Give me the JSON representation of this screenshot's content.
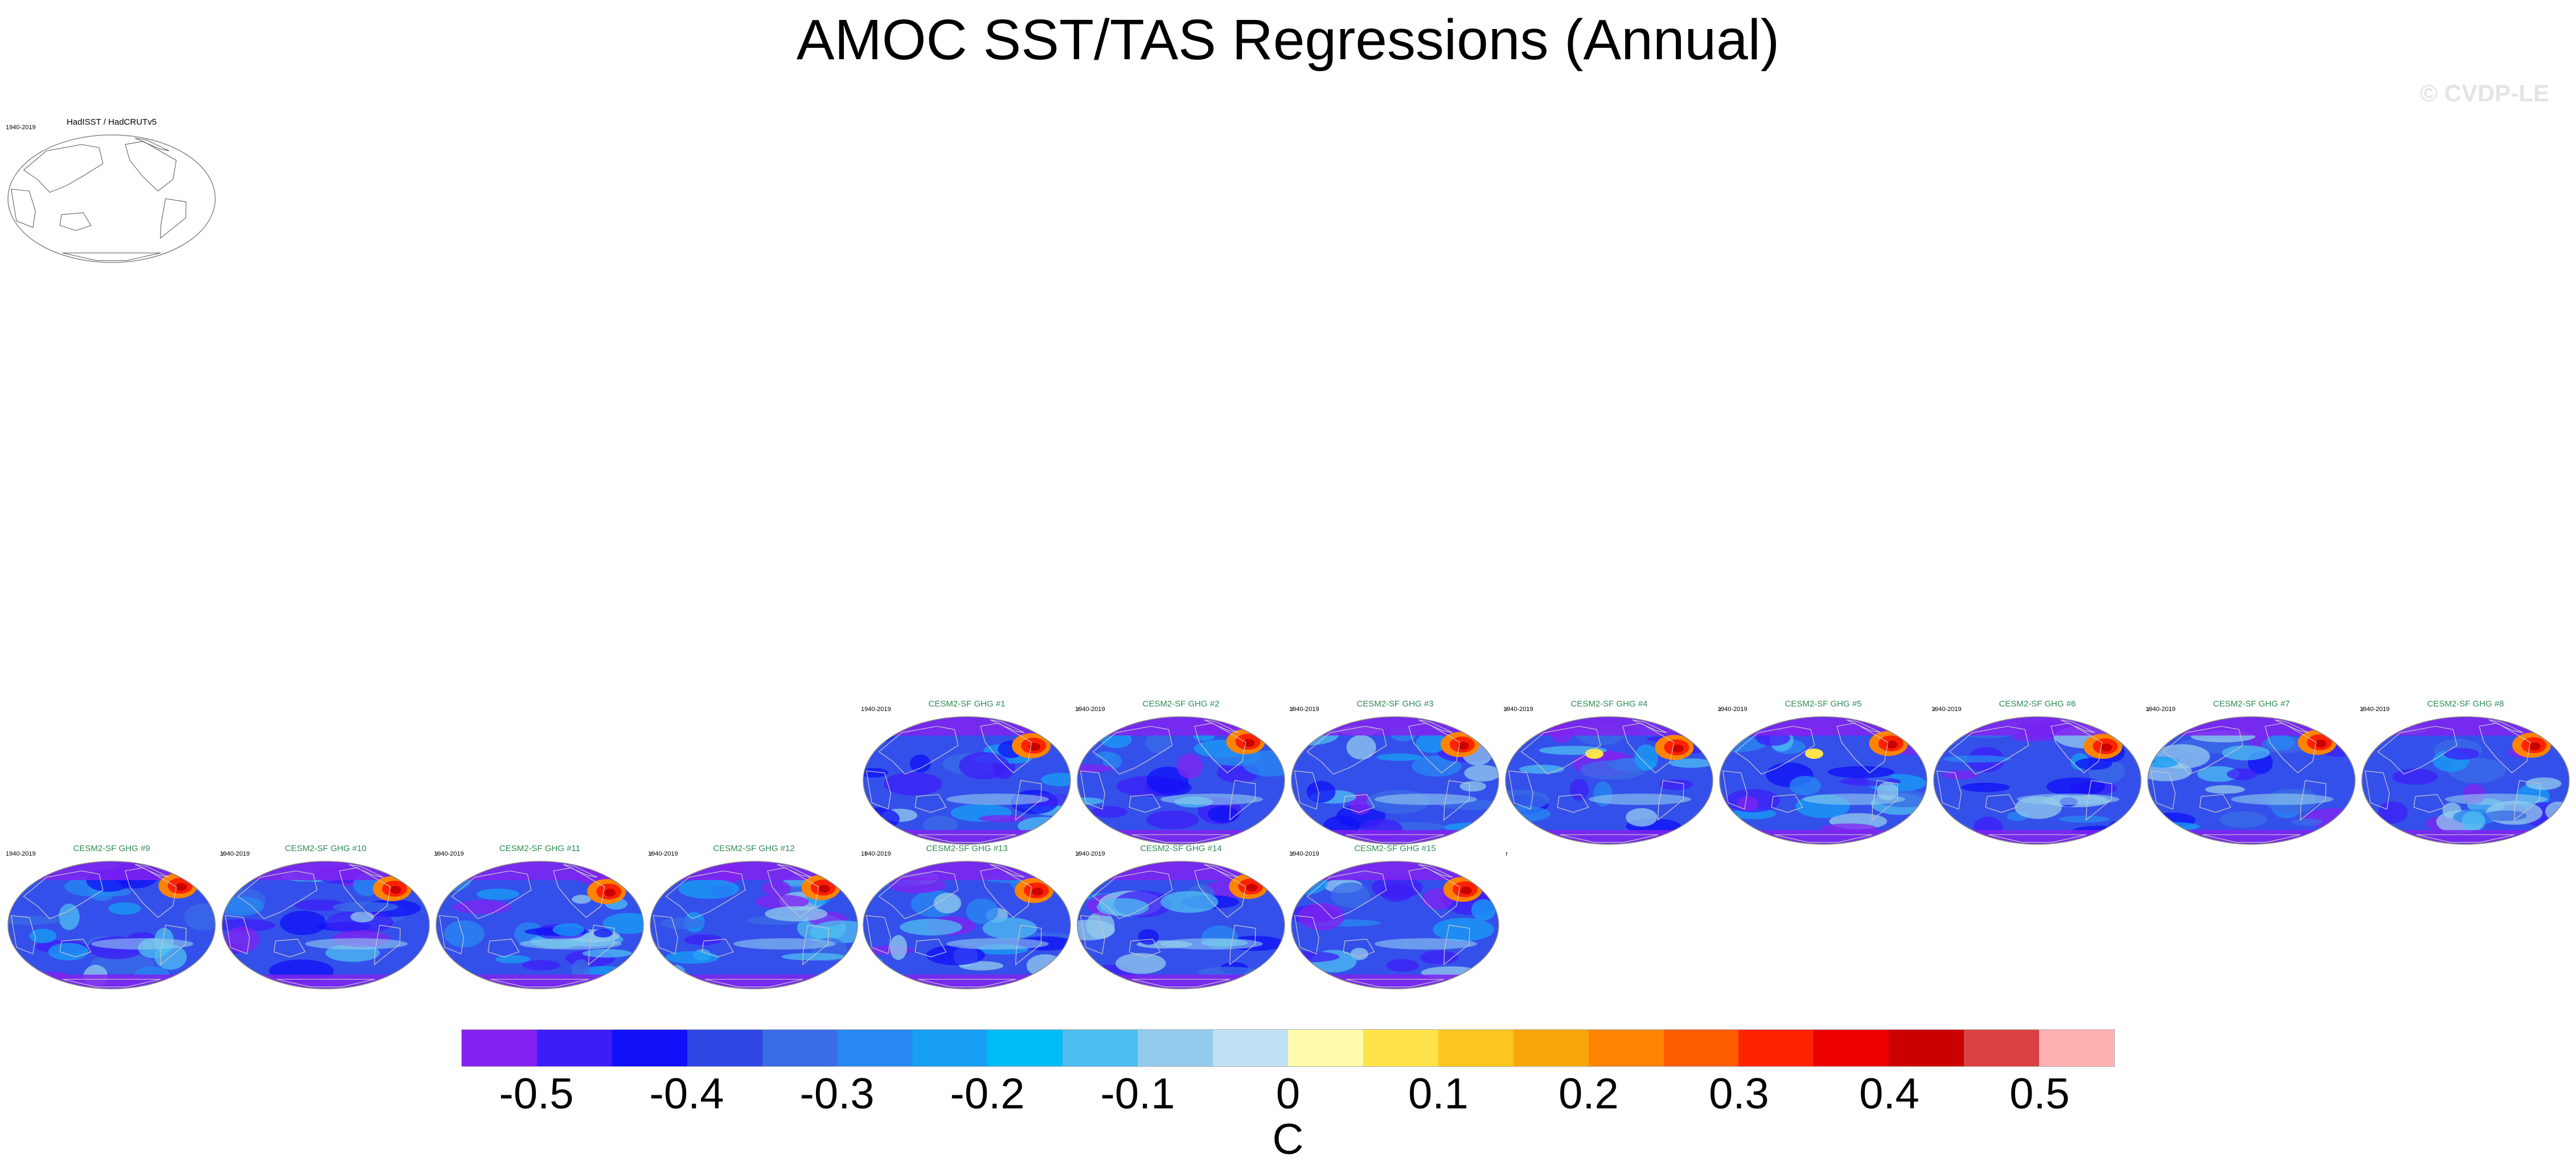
{
  "figure": {
    "title": "AMOC SST/TAS Regressions (Annual)",
    "watermark": "© CVDP-LE",
    "units": "C"
  },
  "panels": [
    {
      "title": "HadISST / HadCRUTv5",
      "period": "1940-2019",
      "corner": "",
      "kind": "obs"
    },
    {
      "title": "CESM2-SF GHG #1",
      "period": "1940-2019",
      "corner": "r",
      "kind": "model",
      "seed": 1
    },
    {
      "title": "CESM2-SF GHG #2",
      "period": "1940-2019",
      "corner": "r",
      "kind": "model",
      "seed": 2
    },
    {
      "title": "CESM2-SF GHG #3",
      "period": "1940-2019",
      "corner": "r",
      "kind": "model",
      "seed": 3
    },
    {
      "title": "CESM2-SF GHG #4",
      "period": "1940-2019",
      "corner": "r",
      "kind": "model",
      "seed": 4
    },
    {
      "title": "CESM2-SF GHG #5",
      "period": "1940-2019",
      "corner": "r",
      "kind": "model",
      "seed": 5
    },
    {
      "title": "CESM2-SF GHG #6",
      "period": "1940-2019",
      "corner": "r",
      "kind": "model",
      "seed": 6
    },
    {
      "title": "CESM2-SF GHG #7",
      "period": "1940-2019",
      "corner": "r",
      "kind": "model",
      "seed": 7
    },
    {
      "title": "CESM2-SF GHG #8",
      "period": "1940-2019",
      "corner": "",
      "kind": "model",
      "seed": 8
    },
    {
      "title": "CESM2-SF GHG #9",
      "period": "1940-2019",
      "corner": "r",
      "kind": "model",
      "seed": 9
    },
    {
      "title": "CESM2-SF GHG #10",
      "period": "1940-2019",
      "corner": "r",
      "kind": "model",
      "seed": 10
    },
    {
      "title": "CESM2-SF GHG #11",
      "period": "1940-2019",
      "corner": "r",
      "kind": "model",
      "seed": 11
    },
    {
      "title": "CESM2-SF GHG #12",
      "period": "1940-2019",
      "corner": "r",
      "kind": "model",
      "seed": 12
    },
    {
      "title": "CESM2-SF GHG #13",
      "period": "1940-2019",
      "corner": "r",
      "kind": "model",
      "seed": 13
    },
    {
      "title": "CESM2-SF GHG #14",
      "period": "1940-2019",
      "corner": "r",
      "kind": "model",
      "seed": 14
    },
    {
      "title": "CESM2-SF GHG #15",
      "period": "1940-2019",
      "corner": "r",
      "kind": "model",
      "seed": 15
    }
  ],
  "colorbar": {
    "colors": [
      "#8322f0",
      "#3d1df7",
      "#0f10f6",
      "#2f45e4",
      "#3a6ce6",
      "#2788f2",
      "#179ff6",
      "#00bbf5",
      "#4dbdf0",
      "#93cbec",
      "#bfe1f5",
      "#fffbaa",
      "#ffe34a",
      "#fdc61e",
      "#f8a70a",
      "#fd8400",
      "#fd5c00",
      "#fd2300",
      "#ec0000",
      "#cb0000",
      "#d94144",
      "#ffb1b1"
    ],
    "tick_labels": [
      "-0.5",
      "-0.4",
      "-0.3",
      "-0.2",
      "-0.1",
      "0",
      "0.1",
      "0.2",
      "0.3",
      "0.4",
      "0.5"
    ]
  }
}
